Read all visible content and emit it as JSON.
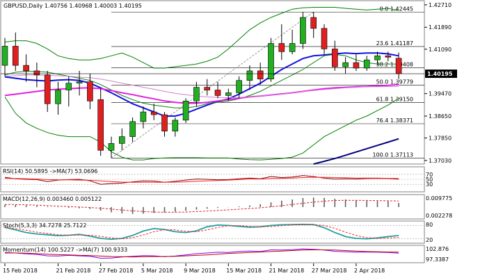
{
  "chart_data": {
    "type": "candlestick",
    "symbol_header": "GBPUSD,Daily  1.40756 1.40968 1.40003 1.40195",
    "dates": [
      "15 Feb 2018",
      "21 Feb 2018",
      "27 Feb 2018",
      "5 Mar 2018",
      "9 Mar 2018",
      "15 Mar 2018",
      "21 Mar 2018",
      "27 Mar 2018",
      "2 Apr 2018"
    ],
    "y_ticks": [
      1.4271,
      1.4189,
      1.4109,
      1.3947,
      1.3865,
      1.3785,
      1.3703
    ],
    "y_tick_labels": [
      "1.42710",
      "1.41890",
      "1.41090",
      "1.39470",
      "1.38650",
      "1.37850",
      "1.37030"
    ],
    "y_range": [
      1.369,
      1.4286
    ],
    "current_price": 1.40195,
    "current_price_label": "1.40195",
    "candles": [
      {
        "o": 1.405,
        "h": 1.415,
        "l": 1.401,
        "c": 1.412
      },
      {
        "o": 1.412,
        "h": 1.417,
        "l": 1.403,
        "c": 1.405
      },
      {
        "o": 1.405,
        "h": 1.409,
        "l": 1.399,
        "c": 1.403
      },
      {
        "o": 1.403,
        "h": 1.406,
        "l": 1.397,
        "c": 1.4015
      },
      {
        "o": 1.4015,
        "h": 1.403,
        "l": 1.388,
        "c": 1.391
      },
      {
        "o": 1.391,
        "h": 1.399,
        "l": 1.387,
        "c": 1.396
      },
      {
        "o": 1.396,
        "h": 1.401,
        "l": 1.39,
        "c": 1.3985
      },
      {
        "o": 1.3985,
        "h": 1.403,
        "l": 1.394,
        "c": 1.399
      },
      {
        "o": 1.399,
        "h": 1.402,
        "l": 1.389,
        "c": 1.392
      },
      {
        "o": 1.3925,
        "h": 1.3965,
        "l": 1.372,
        "c": 1.374
      },
      {
        "o": 1.374,
        "h": 1.379,
        "l": 1.3712,
        "c": 1.3765
      },
      {
        "o": 1.3765,
        "h": 1.382,
        "l": 1.374,
        "c": 1.379
      },
      {
        "o": 1.379,
        "h": 1.386,
        "l": 1.377,
        "c": 1.3845
      },
      {
        "o": 1.3845,
        "h": 1.39,
        "l": 1.382,
        "c": 1.388
      },
      {
        "o": 1.388,
        "h": 1.391,
        "l": 1.385,
        "c": 1.387
      },
      {
        "o": 1.387,
        "h": 1.388,
        "l": 1.379,
        "c": 1.381
      },
      {
        "o": 1.381,
        "h": 1.386,
        "l": 1.379,
        "c": 1.385
      },
      {
        "o": 1.385,
        "h": 1.393,
        "l": 1.384,
        "c": 1.392
      },
      {
        "o": 1.392,
        "h": 1.399,
        "l": 1.39,
        "c": 1.397
      },
      {
        "o": 1.397,
        "h": 1.4,
        "l": 1.394,
        "c": 1.396
      },
      {
        "o": 1.396,
        "h": 1.399,
        "l": 1.393,
        "c": 1.394
      },
      {
        "o": 1.394,
        "h": 1.3965,
        "l": 1.392,
        "c": 1.395
      },
      {
        "o": 1.395,
        "h": 1.401,
        "l": 1.393,
        "c": 1.3995
      },
      {
        "o": 1.3995,
        "h": 1.405,
        "l": 1.396,
        "c": 1.403
      },
      {
        "o": 1.403,
        "h": 1.406,
        "l": 1.398,
        "c": 1.4
      },
      {
        "o": 1.4,
        "h": 1.415,
        "l": 1.399,
        "c": 1.413
      },
      {
        "o": 1.413,
        "h": 1.42,
        "l": 1.407,
        "c": 1.41
      },
      {
        "o": 1.41,
        "h": 1.418,
        "l": 1.409,
        "c": 1.413
      },
      {
        "o": 1.413,
        "h": 1.4245,
        "l": 1.411,
        "c": 1.4225
      },
      {
        "o": 1.4225,
        "h": 1.4245,
        "l": 1.415,
        "c": 1.4185
      },
      {
        "o": 1.4185,
        "h": 1.42,
        "l": 1.409,
        "c": 1.411
      },
      {
        "o": 1.411,
        "h": 1.414,
        "l": 1.403,
        "c": 1.4045
      },
      {
        "o": 1.4045,
        "h": 1.408,
        "l": 1.402,
        "c": 1.406
      },
      {
        "o": 1.406,
        "h": 1.409,
        "l": 1.403,
        "c": 1.404
      },
      {
        "o": 1.404,
        "h": 1.4085,
        "l": 1.403,
        "c": 1.407
      },
      {
        "o": 1.407,
        "h": 1.41,
        "l": 1.405,
        "c": 1.4085
      },
      {
        "o": 1.4085,
        "h": 1.41,
        "l": 1.4065,
        "c": 1.408
      },
      {
        "o": 1.4076,
        "h": 1.4097,
        "l": 1.4,
        "c": 1.402
      }
    ],
    "date_label_candles": [
      0,
      5,
      9,
      13,
      17,
      21,
      25,
      29,
      33
    ],
    "fib_levels": [
      {
        "pct": "0.0",
        "price": 1.42445
      },
      {
        "pct": "23.6",
        "price": 1.41187
      },
      {
        "pct": "38.2",
        "price": 1.40408
      },
      {
        "pct": "50.0",
        "price": 1.39779
      },
      {
        "pct": "61.8",
        "price": 1.3915
      },
      {
        "pct": "76.4",
        "price": 1.38371
      },
      {
        "pct": "100.0",
        "price": 1.37113
      }
    ],
    "fib_price_labels": [
      "1.42445",
      "1.41187",
      "1.40408",
      "1.39779",
      "1.39150",
      "1.38371",
      "1.37113"
    ],
    "trendline": {
      "from": {
        "candle": 10,
        "price": 1.3712
      },
      "to": {
        "candle": 29,
        "price": 1.4245
      }
    },
    "moving_averages": [
      {
        "name": "ma_blue",
        "color": "#1010e0",
        "values": [
          1.4008,
          1.4003,
          1.3998,
          1.3995,
          1.3993,
          1.3996,
          1.3998,
          1.3995,
          1.3985,
          1.3968,
          1.395,
          1.393,
          1.391,
          1.3895,
          1.388,
          1.3865,
          1.3865,
          1.3875,
          1.389,
          1.3905,
          1.3918,
          1.3928,
          1.3945,
          1.3965,
          1.3985,
          1.401,
          1.4035,
          1.4055,
          1.4075,
          1.4085,
          1.4088,
          1.4092,
          1.4095,
          1.4093,
          1.4095,
          1.4095,
          1.4092,
          1.4085
        ]
      },
      {
        "name": "ma_green",
        "color": "#108010",
        "values": [
          1.4015,
          1.4025,
          1.4028,
          1.4028,
          1.4025,
          1.4018,
          1.401,
          1.4003,
          1.3995,
          1.398,
          1.396,
          1.394,
          1.3925,
          1.3912,
          1.3905,
          1.39,
          1.3895,
          1.3895,
          1.39,
          1.391,
          1.3915,
          1.392,
          1.3928,
          1.394,
          1.3955,
          1.3975,
          1.3995,
          1.4015,
          1.4035,
          1.406,
          1.4085,
          1.409,
          1.4085,
          1.407,
          1.406,
          1.4055,
          1.4055,
          1.4055
        ]
      },
      {
        "name": "ma_magenta",
        "color": "#e020e0",
        "values": [
          1.394,
          1.3945,
          1.395,
          1.3955,
          1.396,
          1.3963,
          1.3965,
          1.3967,
          1.3968,
          1.3965,
          1.3958,
          1.395,
          1.3943,
          1.3935,
          1.3928,
          1.392,
          1.3915,
          1.3912,
          1.3912,
          1.3915,
          1.392,
          1.3925,
          1.393,
          1.3935,
          1.3938,
          1.3942,
          1.3946,
          1.395,
          1.3955,
          1.396,
          1.3965,
          1.3968,
          1.397,
          1.3972,
          1.3973,
          1.3975,
          1.3977,
          1.398
        ]
      },
      {
        "name": "ma_violet",
        "color": "#d080d0",
        "values": [
          1.401,
          1.4012,
          1.4015,
          1.4015,
          1.4013,
          1.4012,
          1.401,
          1.4007,
          1.4005,
          1.4,
          1.3993,
          1.3985,
          1.3978,
          1.397,
          1.3963,
          1.3955,
          1.3948,
          1.3943,
          1.3938,
          1.3935,
          1.3933,
          1.3932,
          1.3933,
          1.3935,
          1.3938,
          1.3942,
          1.3945,
          1.395,
          1.3955,
          1.3958,
          1.3962,
          1.3965,
          1.3968,
          1.397,
          1.3972,
          1.3972,
          1.3973,
          1.3973
        ]
      },
      {
        "name": "band_upper",
        "color": "#008000",
        "values": [
          1.4135,
          1.414,
          1.414,
          1.413,
          1.411,
          1.4085,
          1.4075,
          1.407,
          1.407,
          1.4075,
          1.4085,
          1.4095,
          1.408,
          1.406,
          1.404,
          1.404,
          1.4045,
          1.405,
          1.4055,
          1.4065,
          1.408,
          1.411,
          1.4145,
          1.418,
          1.4205,
          1.4225,
          1.424,
          1.4255,
          1.426,
          1.4262,
          1.4262,
          1.4262,
          1.4258,
          1.4255,
          1.4252,
          1.4255,
          1.4258,
          1.425
        ]
      },
      {
        "name": "band_lower",
        "color": "#008000",
        "values": [
          1.3935,
          1.3875,
          1.384,
          1.382,
          1.3805,
          1.3795,
          1.379,
          1.379,
          1.379,
          1.377,
          1.3735,
          1.3715,
          1.3705,
          1.3705,
          1.371,
          1.3712,
          1.3713,
          1.3713,
          1.3713,
          1.3712,
          1.3712,
          1.3712,
          1.3708,
          1.3706,
          1.3705,
          1.3707,
          1.371,
          1.3715,
          1.373,
          1.376,
          1.379,
          1.381,
          1.383,
          1.385,
          1.3865,
          1.3885,
          1.3905,
          1.393
        ]
      },
      {
        "name": "trend_navy",
        "color": "#000080",
        "values": [
          null,
          null,
          null,
          null,
          null,
          null,
          null,
          null,
          null,
          null,
          null,
          null,
          null,
          null,
          null,
          null,
          null,
          null,
          null,
          null,
          null,
          null,
          null,
          null,
          null,
          null,
          null,
          null,
          null,
          1.369,
          1.37,
          1.371,
          1.3722,
          1.3734,
          1.3746,
          1.3758,
          1.377,
          1.3782
        ]
      }
    ],
    "indicators": [
      {
        "name": "RSI",
        "label": "RSI(14) 50.5895 ->MA(7) 53.0696",
        "levels": [
          70,
          50,
          30
        ],
        "level_labels": [
          "70",
          "50",
          "30"
        ],
        "range": [
          0,
          100
        ],
        "series": [
          {
            "color": "#800000",
            "values": [
              58,
              52,
              50,
              49,
              41,
              47,
              49,
              50,
              44,
              30,
              33,
              35,
              40,
              44,
              43,
              38,
              42,
              47,
              51,
              50,
              48,
              49,
              52,
              55,
              52,
              61,
              57,
              59,
              65,
              61,
              55,
              51,
              52,
              51,
              53,
              54,
              53,
              50.59
            ]
          },
          {
            "color": "#ff2020",
            "values": [
              54,
              53,
              52,
              51,
              49,
              48,
              48,
              47,
              46,
              44,
              41,
              39,
              38,
              38,
              38,
              38,
              39,
              40,
              42,
              44,
              45,
              47,
              49,
              51,
              51,
              53,
              54,
              55,
              57,
              58,
              58,
              57,
              56,
              55,
              55,
              55,
              54,
              53.07
            ]
          }
        ]
      },
      {
        "name": "MACD",
        "label": "MACD(12,26,9) 0.003460 0.005122",
        "ticks": [
          "0.009775",
          "0.002278"
        ],
        "range": [
          -0.01,
          0.0105
        ],
        "histogram": [
          0.002,
          0.0018,
          0.0014,
          0.001,
          0.0004,
          -0.0002,
          -0.0006,
          -0.001,
          -0.0016,
          -0.003,
          -0.0044,
          -0.0054,
          -0.0058,
          -0.0056,
          -0.005,
          -0.0046,
          -0.004,
          -0.0032,
          -0.0022,
          -0.0014,
          -0.0008,
          -0.0002,
          0.0006,
          0.0014,
          0.0024,
          0.004,
          0.0054,
          0.0064,
          0.0076,
          0.008,
          0.0078,
          0.007,
          0.0064,
          0.0056,
          0.0052,
          0.005,
          0.0048,
          0.00346
        ],
        "signal": [
          0.0022,
          0.0021,
          0.0019,
          0.0016,
          0.0012,
          0.0008,
          0.0004,
          0.0,
          -0.0004,
          -0.001,
          -0.0017,
          -0.0025,
          -0.0032,
          -0.0038,
          -0.0042,
          -0.0044,
          -0.0044,
          -0.0042,
          -0.0038,
          -0.0034,
          -0.0029,
          -0.0024,
          -0.0018,
          -0.0012,
          -0.0006,
          0.0002,
          0.0012,
          0.0022,
          0.0032,
          0.0042,
          0.005,
          0.0055,
          0.0057,
          0.0057,
          0.0056,
          0.0054,
          0.0053,
          0.005122
        ]
      },
      {
        "name": "Stoch",
        "label": "Stoch(5,3,3) 34.7278 25.7122",
        "ticks": [
          "80",
          "20"
        ],
        "levels": [
          80,
          20
        ],
        "range": [
          0,
          100
        ],
        "series": [
          {
            "color": "#20a0a0",
            "values": [
              72,
              60,
              48,
              42,
              38,
              34,
              36,
              40,
              32,
              22,
              18,
              22,
              35,
              55,
              66,
              62,
              52,
              48,
              56,
              74,
              82,
              80,
              76,
              72,
              74,
              80,
              83,
              84,
              85,
              84,
              70,
              48,
              30,
              22,
              20,
              24,
              30,
              34.73
            ]
          },
          {
            "color": "#ff2020",
            "values": [
              70,
              66,
              58,
              50,
              44,
              38,
              36,
              37,
              36,
              31,
              24,
              20,
              25,
              37,
              52,
              61,
              60,
              54,
              52,
              60,
              71,
              79,
              79,
              76,
              74,
              75,
              79,
              82,
              84,
              84,
              80,
              67,
              50,
              35,
              25,
              22,
              24,
              25.71
            ]
          }
        ]
      },
      {
        "name": "Momentum",
        "label": "Momentum(14) 100.5227 ->MA(7) 100.9333",
        "ticks": [
          "102.876",
          "97.3387"
        ],
        "range": [
          96.5,
          103.8
        ],
        "series": [
          {
            "color": "#8000ff",
            "values": [
              100.8,
              100.6,
              100.2,
              100.0,
              99.4,
              99.3,
              99.6,
              99.4,
              99.2,
              98.4,
              98.5,
              98.9,
              99.2,
              99.5,
              99.4,
              99.0,
              99.3,
              99.8,
              100.3,
              100.6,
              100.9,
              100.8,
              101.2,
              101.4,
              101.2,
              101.9,
              101.8,
              102.0,
              102.3,
              102.1,
              101.8,
              101.3,
              101.1,
              100.9,
              101.0,
              100.9,
              100.8,
              100.52
            ]
          },
          {
            "color": "#c00000",
            "values": [
              100.6,
              100.6,
              100.5,
              100.3,
              100.1,
              99.9,
              99.8,
              99.6,
              99.5,
              99.3,
              99.1,
              99.0,
              98.9,
              99.0,
              99.1,
              99.1,
              99.2,
              99.4,
              99.6,
              99.8,
              100.1,
              100.4,
              100.6,
              100.8,
              101.0,
              101.2,
              101.4,
              101.6,
              101.8,
              101.9,
              101.9,
              101.8,
              101.6,
              101.4,
              101.2,
              101.1,
              101.0,
              100.93
            ]
          }
        ]
      }
    ]
  }
}
